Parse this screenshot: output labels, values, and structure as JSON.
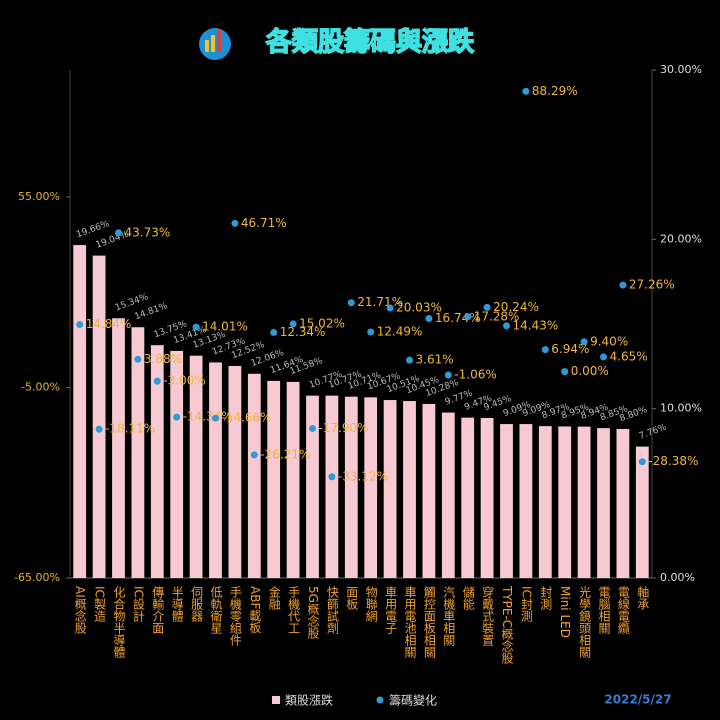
{
  "chart_data": {
    "type": "bar_dot",
    "title": "各類股籌碼與漲跌",
    "date": "2022/5/27",
    "categories": [
      "AI概念股",
      "IC製造",
      "化合物半導體",
      "IC設計",
      "傳輸介面",
      "半導體",
      "伺服器",
      "低軌衛星",
      "手機零組件",
      "ABF載板",
      "金融",
      "手機代工",
      "5G概念股",
      "快篩試劑",
      "面板",
      "物聯網",
      "車用電子",
      "車用電池相關",
      "觸控面板相關",
      "汽機車相關",
      "儲能",
      "穿戴式裝置",
      "TYPE-C概念股",
      "IC封測",
      "封測",
      "Mini LED",
      "光學鏡頭相關",
      "電腦相關",
      "電線電纜",
      "軸承"
    ],
    "series": [
      {
        "name": "類股漲跌",
        "color": "#f6c9d3",
        "axis": "y2",
        "values": [
          19.66,
          19.04,
          15.34,
          14.81,
          13.75,
          13.41,
          13.13,
          12.73,
          12.52,
          12.06,
          11.64,
          11.58,
          10.77,
          10.77,
          10.71,
          10.67,
          10.51,
          10.45,
          10.28,
          9.77,
          9.47,
          9.45,
          9.09,
          9.09,
          8.97,
          8.95,
          8.94,
          8.85,
          8.8,
          7.76
        ],
        "value_labels": [
          "19.66%",
          "19.04%",
          "15.34%",
          "14.81%",
          "13.75%",
          "13.41%",
          "13.13%",
          "12.73%",
          "12.52%",
          "12.06%",
          "11.64%",
          "11.58%",
          "10.77%",
          "10.77%",
          "10.71%",
          "10.67%",
          "10.51%",
          "10.45%",
          "10.28%",
          "9.77%",
          "9.47%",
          "9.45%",
          "9.09%",
          "9.09%",
          "8.97%",
          "8.95%",
          "8.94%",
          "8.85%",
          "8.80%",
          "7.76%"
        ]
      },
      {
        "name": "籌碼變化",
        "color": "#2e9bd6",
        "axis": "y",
        "values": [
          14.84,
          -18.11,
          43.73,
          3.88,
          -3.0,
          -14.34,
          14.01,
          -14.66,
          46.71,
          -26.21,
          12.34,
          15.02,
          -17.9,
          -33.12,
          21.71,
          12.49,
          20.03,
          3.61,
          16.74,
          -1.06,
          17.28,
          20.24,
          14.43,
          88.29,
          6.94,
          0.0,
          9.4,
          4.65,
          27.26,
          -28.38
        ],
        "value_labels": [
          "14.84%",
          "-18.11%",
          "43.73%",
          "3.88%",
          "-3.00%",
          "-14.34%",
          "14.01%",
          "-14.66%",
          "46.71%",
          "-26.21%",
          "12.34%",
          "15.02%",
          "-17.90%",
          "-33.12%",
          "21.71%",
          "12.49%",
          "20.03%",
          "3.61%",
          "16.74%",
          "-1.06%",
          "17.28%",
          "20.24%",
          "14.43%",
          "88.29%",
          "6.94%",
          "0.00%",
          "9.40%",
          "4.65%",
          "27.26%",
          "-28.38%"
        ]
      }
    ],
    "ylim": [
      -65,
      95
    ],
    "yticks": [
      {
        "value": -65,
        "label": "-65.00%"
      },
      {
        "value": -5,
        "label": "-5.00%"
      },
      {
        "value": 55,
        "label": "55.00%"
      }
    ],
    "y2lim": [
      0,
      30
    ],
    "y2ticks": [
      {
        "value": 0,
        "label": "0.00%"
      },
      {
        "value": 10,
        "label": "10.00%"
      },
      {
        "value": 20,
        "label": "20.00%"
      },
      {
        "value": 30,
        "label": "30.00%"
      }
    ],
    "legend": "bottom"
  }
}
